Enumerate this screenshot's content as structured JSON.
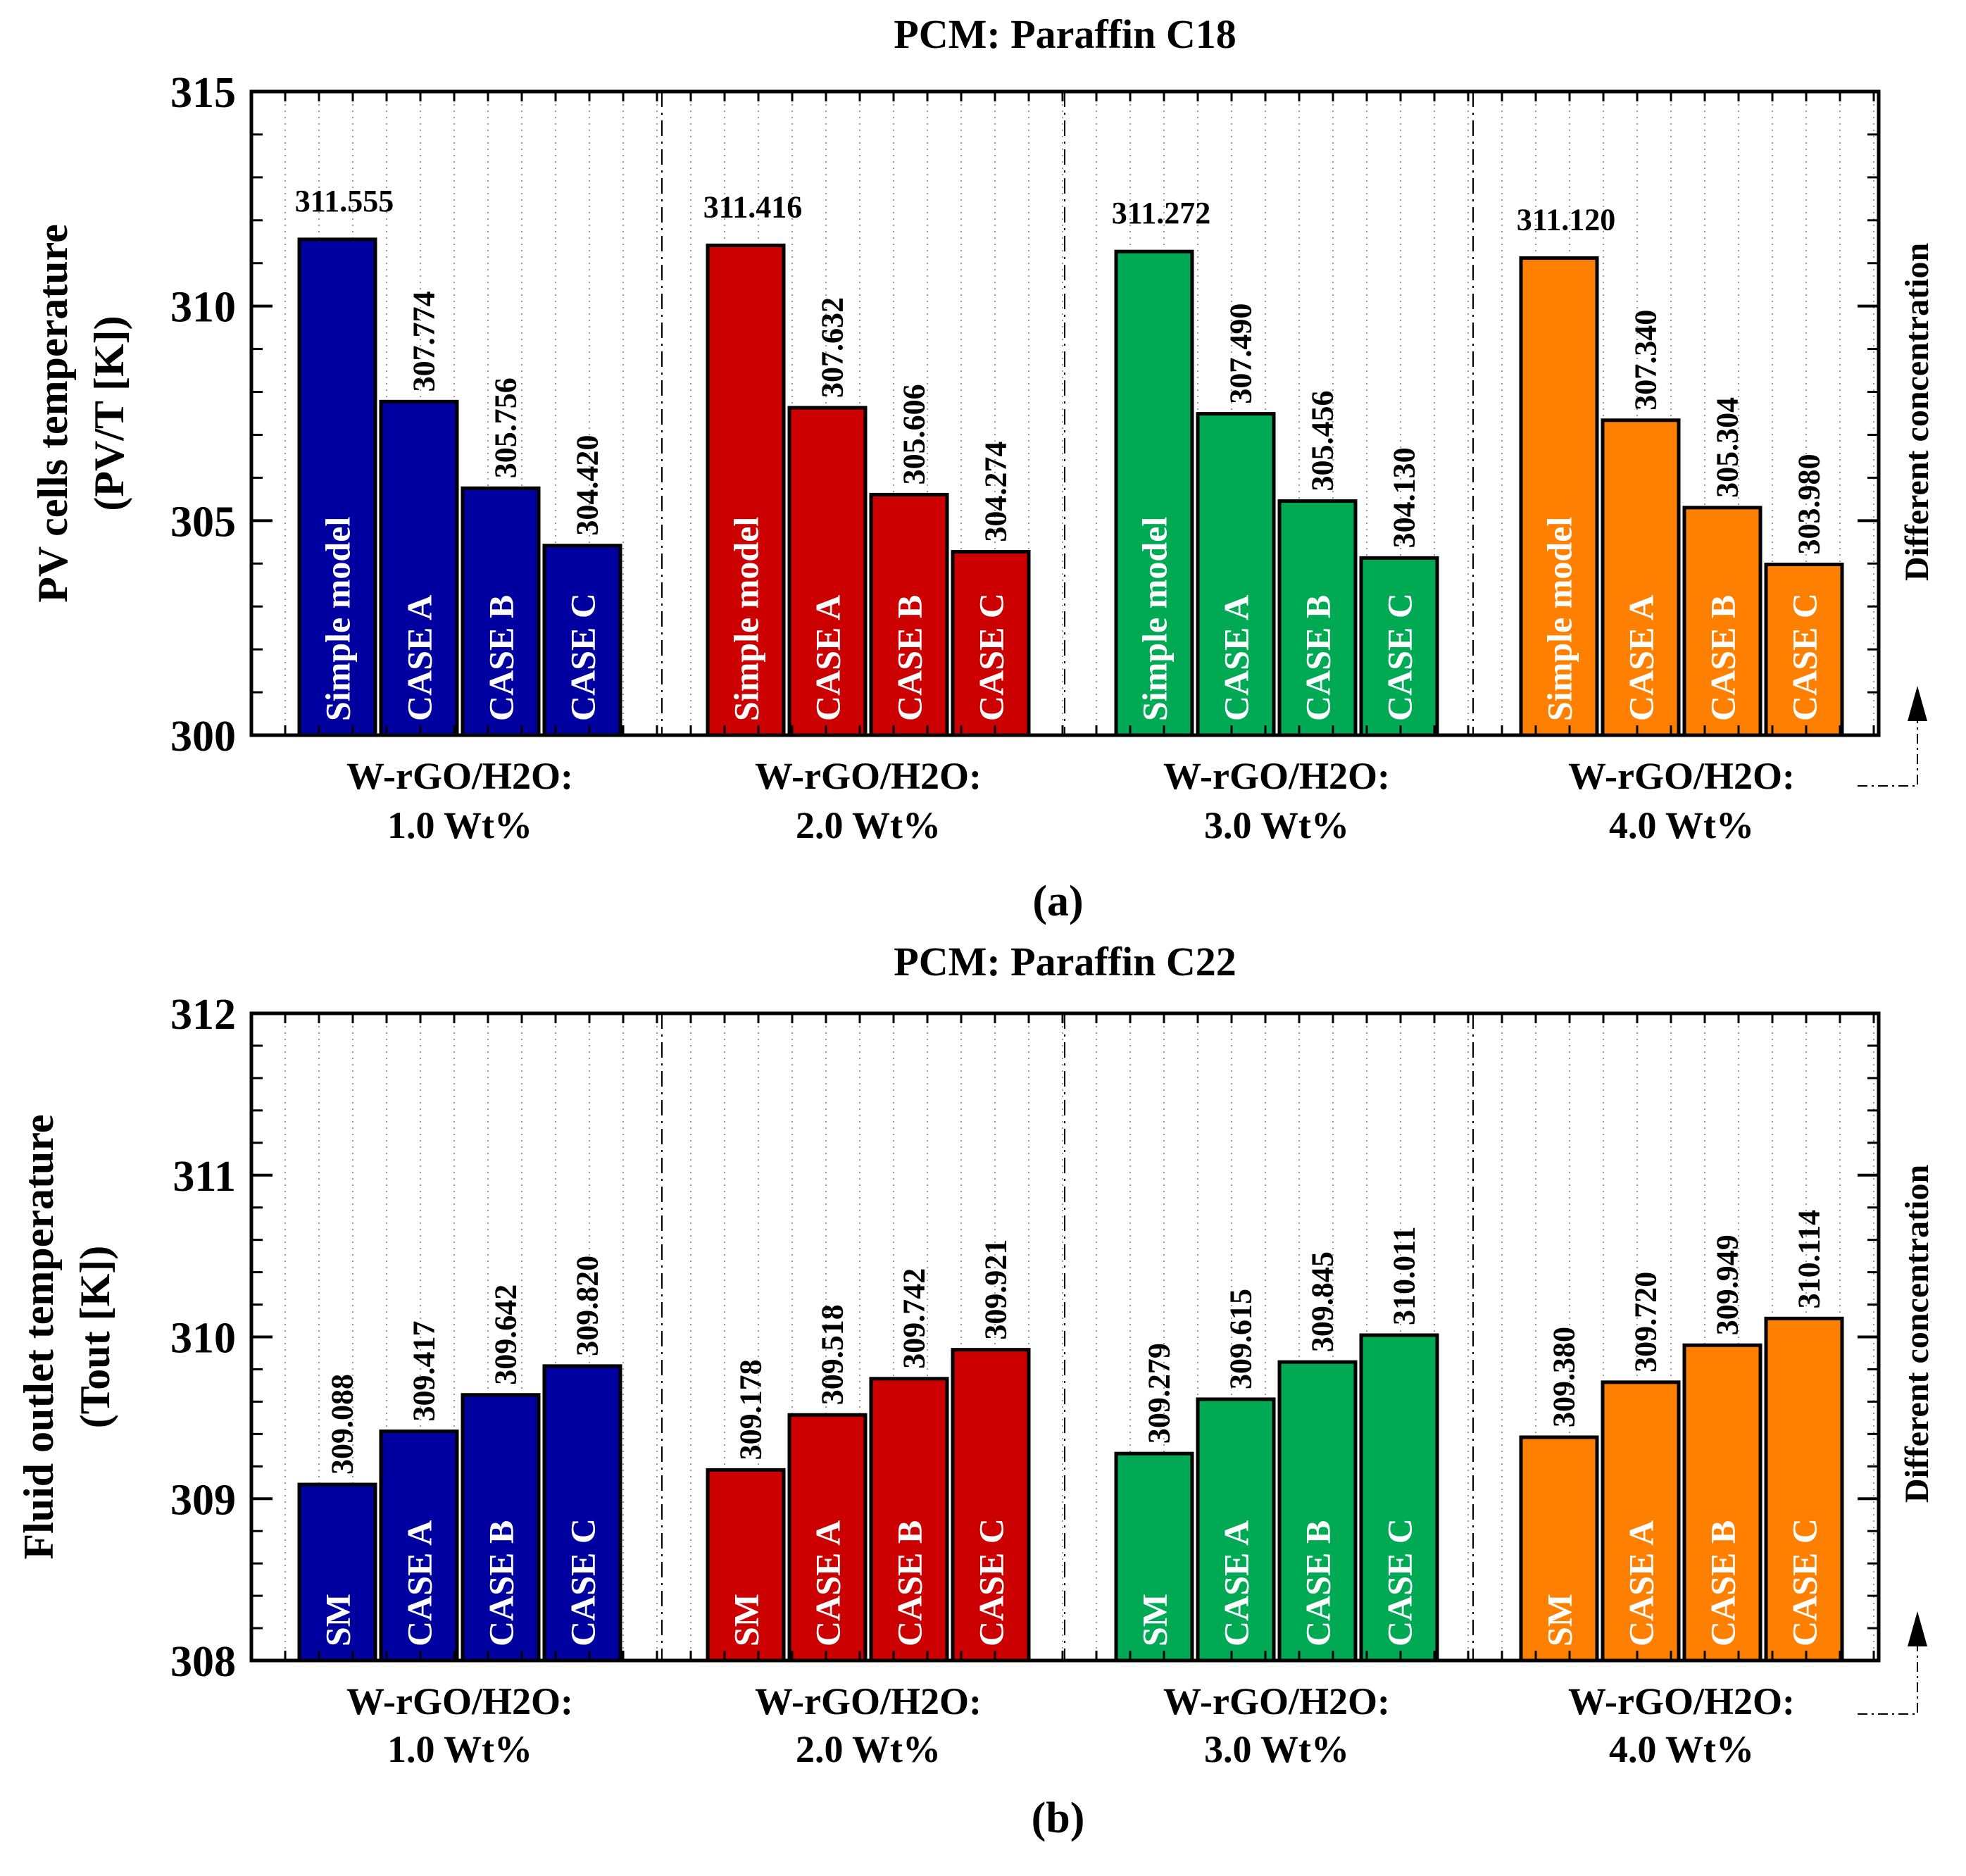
{
  "chart_data": [
    {
      "type": "bar",
      "title": "PCM: Paraffin C18",
      "ylabel": "PV cells temperature (PV/T [K])",
      "ylabel_lines": [
        "PV cells temperature",
        "(PV/T [K])"
      ],
      "ylim": [
        300,
        315
      ],
      "yticks": [
        300,
        305,
        310,
        315
      ],
      "side_note": "Different concentration",
      "panel_label": "(a)",
      "groups": [
        {
          "label_line1": "W-rGO/H2O:",
          "label_line2": "1.0 Wt%",
          "color": "#0000a0",
          "bars": [
            {
              "name": "Simple model",
              "value": 311.555,
              "value_label": "311.555"
            },
            {
              "name": "CASE A",
              "value": 307.774,
              "value_label": "307.774"
            },
            {
              "name": "CASE B",
              "value": 305.756,
              "value_label": "305.756"
            },
            {
              "name": "CASE C",
              "value": 304.42,
              "value_label": "304.420"
            }
          ]
        },
        {
          "label_line1": "W-rGO/H2O:",
          "label_line2": "2.0 Wt%",
          "color": "#cc0000",
          "bars": [
            {
              "name": "Simple model",
              "value": 311.416,
              "value_label": "311.416"
            },
            {
              "name": "CASE A",
              "value": 307.632,
              "value_label": "307.632"
            },
            {
              "name": "CASE B",
              "value": 305.606,
              "value_label": "305.606"
            },
            {
              "name": "CASE C",
              "value": 304.274,
              "value_label": "304.274"
            }
          ]
        },
        {
          "label_line1": "W-rGO/H2O:",
          "label_line2": "3.0 Wt%",
          "color": "#00aa55",
          "bars": [
            {
              "name": "Simple model",
              "value": 311.272,
              "value_label": "311.272"
            },
            {
              "name": "CASE A",
              "value": 307.49,
              "value_label": "307.490"
            },
            {
              "name": "CASE B",
              "value": 305.456,
              "value_label": "305.456"
            },
            {
              "name": "CASE C",
              "value": 304.13,
              "value_label": "304.130"
            }
          ]
        },
        {
          "label_line1": "W-rGO/H2O:",
          "label_line2": "4.0 Wt%",
          "color": "#ff7f00",
          "bars": [
            {
              "name": "Simple model",
              "value": 311.12,
              "value_label": "311.120"
            },
            {
              "name": "CASE A",
              "value": 307.34,
              "value_label": "307.340"
            },
            {
              "name": "CASE B",
              "value": 305.304,
              "value_label": "305.304"
            },
            {
              "name": "CASE C",
              "value": 303.98,
              "value_label": "303.980"
            }
          ]
        }
      ]
    },
    {
      "type": "bar",
      "title": "PCM: Paraffin C22",
      "ylabel": "Fluid outlet temperature (Tout [K])",
      "ylabel_lines": [
        "Fluid outlet temperature",
        "(Tout [K])"
      ],
      "ylim": [
        308,
        312
      ],
      "yticks": [
        308,
        309,
        310,
        311,
        312
      ],
      "side_note": "Different concentration",
      "panel_label": "(b)",
      "groups": [
        {
          "label_line1": "W-rGO/H2O:",
          "label_line2": "1.0 Wt%",
          "color": "#0000a0",
          "bars": [
            {
              "name": "SM",
              "value": 309.088,
              "value_label": "309.088"
            },
            {
              "name": "CASE A",
              "value": 309.417,
              "value_label": "309.417"
            },
            {
              "name": "CASE B",
              "value": 309.642,
              "value_label": "309.642"
            },
            {
              "name": "CASE C",
              "value": 309.82,
              "value_label": "309.820"
            }
          ]
        },
        {
          "label_line1": "W-rGO/H2O:",
          "label_line2": "2.0 Wt%",
          "color": "#cc0000",
          "bars": [
            {
              "name": "SM",
              "value": 309.178,
              "value_label": "309.178"
            },
            {
              "name": "CASE A",
              "value": 309.518,
              "value_label": "309.518"
            },
            {
              "name": "CASE B",
              "value": 309.742,
              "value_label": "309.742"
            },
            {
              "name": "CASE C",
              "value": 309.921,
              "value_label": "309.921"
            }
          ]
        },
        {
          "label_line1": "W-rGO/H2O:",
          "label_line2": "3.0 Wt%",
          "color": "#00aa55",
          "bars": [
            {
              "name": "SM",
              "value": 309.279,
              "value_label": "309.279"
            },
            {
              "name": "CASE A",
              "value": 309.615,
              "value_label": "309.615"
            },
            {
              "name": "CASE B",
              "value": 309.845,
              "value_label": "309.845"
            },
            {
              "name": "CASE C",
              "value": 310.011,
              "value_label": "310.011"
            }
          ]
        },
        {
          "label_line1": "W-rGO/H2O:",
          "label_line2": "4.0 Wt%",
          "color": "#ff7f00",
          "bars": [
            {
              "name": "SM",
              "value": 309.38,
              "value_label": "309.380"
            },
            {
              "name": "CASE A",
              "value": 309.72,
              "value_label": "309.720"
            },
            {
              "name": "CASE B",
              "value": 309.949,
              "value_label": "309.949"
            },
            {
              "name": "CASE C",
              "value": 310.114,
              "value_label": "310.114"
            }
          ]
        }
      ]
    }
  ]
}
